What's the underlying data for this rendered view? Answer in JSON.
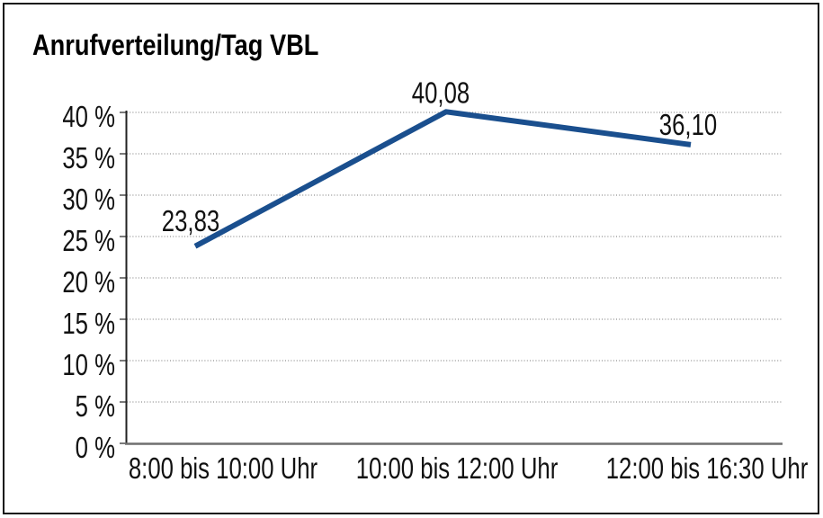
{
  "chart_data": {
    "type": "line",
    "title": "Anrufverteilung/Tag VBL",
    "categories": [
      "8:00 bis 10:00 Uhr",
      "10:00 bis 12:00 Uhr",
      "12:00 bis 16:30 Uhr"
    ],
    "values": [
      23.83,
      40.08,
      36.1
    ],
    "data_labels": [
      "23,83",
      "40,08",
      "36,10"
    ],
    "xlabel": "",
    "ylabel": "",
    "ylim": [
      0,
      40
    ],
    "y_ticks": [
      0,
      5,
      10,
      15,
      20,
      25,
      30,
      35,
      40
    ],
    "y_tick_labels": [
      "0 %",
      "5 %",
      "10 %",
      "15 %",
      "20 %",
      "25 %",
      "30 %",
      "35 %",
      "40 %"
    ],
    "grid": "horizontal-dotted",
    "legend": "none",
    "colors": {
      "line": "#1a4f8e",
      "grid": "#8f8f8f",
      "axis": "#222222",
      "baseline_axis": "#6f6f6f",
      "text": "#111111",
      "background": "#ffffff",
      "border": "#141414"
    }
  }
}
